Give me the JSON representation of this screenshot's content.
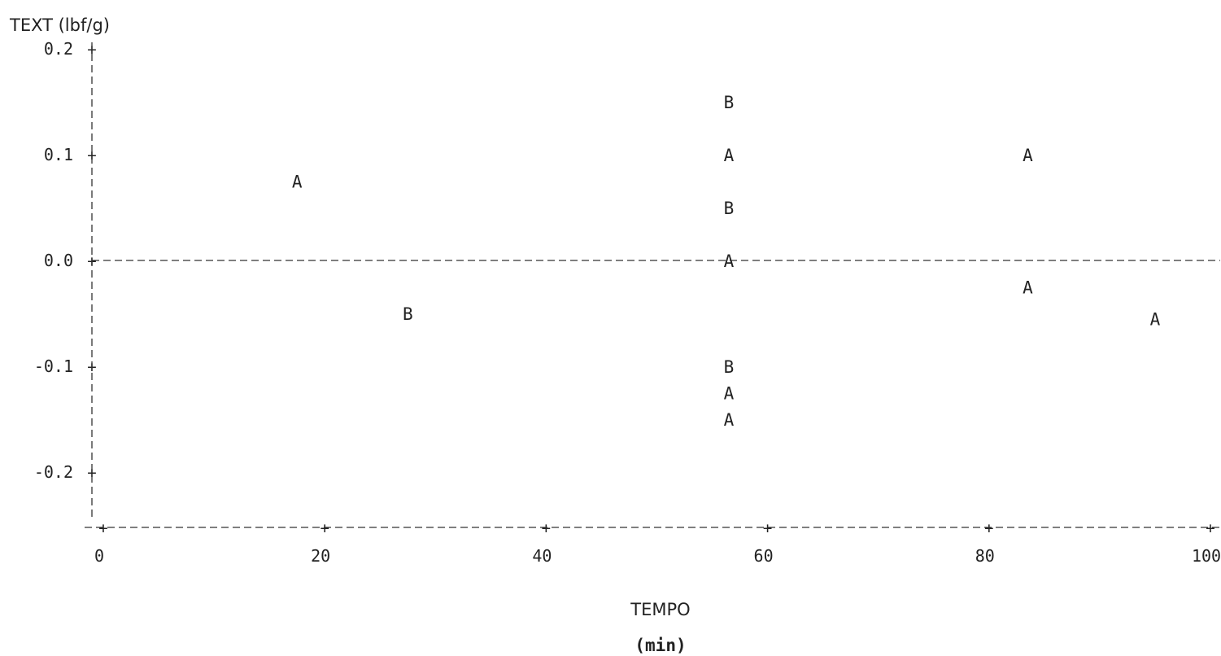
{
  "chart_data": {
    "type": "scatter",
    "ylabel": "TEXT (lbf/g)",
    "xlabel": "TEMPO",
    "xlabel_unit": "(min)",
    "xlim": [
      0,
      100
    ],
    "ylim": [
      -0.25,
      0.2
    ],
    "x_ticks": [
      "0",
      "20",
      "40",
      "60",
      "80",
      "100"
    ],
    "x_tick_values": [
      0,
      20,
      40,
      60,
      80,
      100
    ],
    "y_ticks": [
      "0.2",
      "0.1",
      "0.0",
      "-0.1",
      "-0.2"
    ],
    "y_tick_values": [
      0.2,
      0.1,
      0.0,
      -0.1,
      -0.2
    ],
    "reference_line_y": 0.0,
    "points": [
      {
        "label": "A",
        "x": 17.5,
        "y": 0.075
      },
      {
        "label": "B",
        "x": 27.5,
        "y": -0.05
      },
      {
        "label": "B",
        "x": 56.5,
        "y": 0.15
      },
      {
        "label": "A",
        "x": 56.5,
        "y": 0.1
      },
      {
        "label": "B",
        "x": 56.5,
        "y": 0.05
      },
      {
        "label": "A",
        "x": 56.5,
        "y": 0.0
      },
      {
        "label": "B",
        "x": 56.5,
        "y": -0.1
      },
      {
        "label": "A",
        "x": 56.5,
        "y": -0.125
      },
      {
        "label": "A",
        "x": 56.5,
        "y": -0.15
      },
      {
        "label": "A",
        "x": 83.5,
        "y": 0.1
      },
      {
        "label": "A",
        "x": 83.5,
        "y": -0.025
      },
      {
        "label": "A",
        "x": 95,
        "y": -0.055
      }
    ]
  }
}
